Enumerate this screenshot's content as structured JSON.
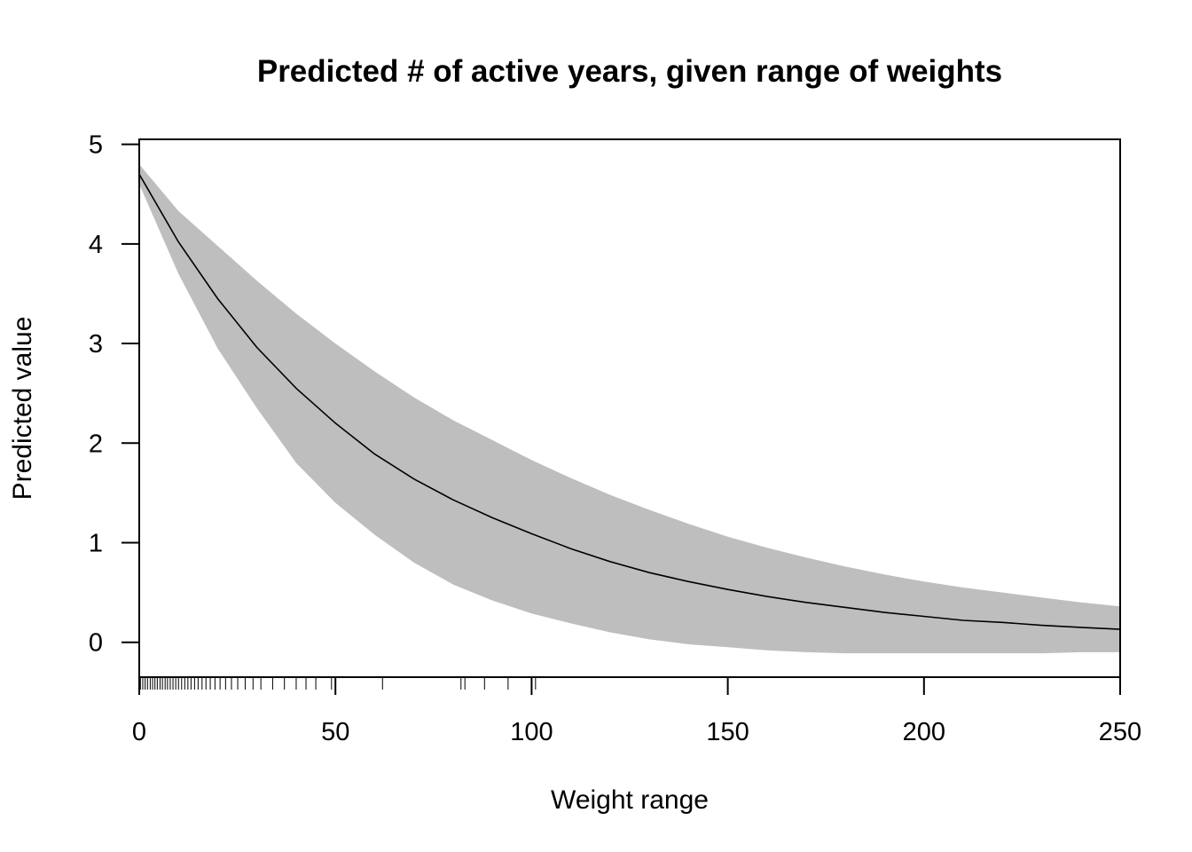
{
  "chart_data": {
    "type": "line",
    "title": "Predicted # of active years, given range of weights",
    "xlabel": "Weight range",
    "ylabel": "Predicted value",
    "xlim": [
      0,
      250
    ],
    "ylim": [
      -0.35,
      5.05
    ],
    "x_ticks": [
      0,
      50,
      100,
      150,
      200,
      250
    ],
    "y_ticks": [
      0,
      1,
      2,
      3,
      4,
      5
    ],
    "grid": false,
    "legend": "none",
    "colors": {
      "line": "#000000",
      "band": "#bebebe",
      "axis": "#000000"
    },
    "series": [
      {
        "x": [
          0,
          10,
          20,
          30,
          40,
          50,
          60,
          70,
          80,
          90,
          100,
          110,
          120,
          130,
          140,
          150,
          160,
          170,
          180,
          190,
          200,
          210,
          220,
          230,
          240,
          250
        ],
        "y": [
          4.7,
          4.02,
          3.45,
          2.96,
          2.55,
          2.2,
          1.89,
          1.64,
          1.43,
          1.25,
          1.09,
          0.94,
          0.81,
          0.7,
          0.61,
          0.53,
          0.46,
          0.4,
          0.35,
          0.3,
          0.26,
          0.22,
          0.2,
          0.17,
          0.15,
          0.13
        ],
        "lower": [
          4.6,
          3.7,
          2.95,
          2.35,
          1.8,
          1.4,
          1.08,
          0.8,
          0.58,
          0.42,
          0.29,
          0.19,
          0.1,
          0.03,
          -0.02,
          -0.05,
          -0.08,
          -0.1,
          -0.11,
          -0.11,
          -0.11,
          -0.11,
          -0.11,
          -0.11,
          -0.1,
          -0.1
        ],
        "upper": [
          4.8,
          4.33,
          3.98,
          3.63,
          3.3,
          3.0,
          2.72,
          2.46,
          2.23,
          2.03,
          1.83,
          1.65,
          1.48,
          1.33,
          1.19,
          1.06,
          0.95,
          0.85,
          0.76,
          0.68,
          0.61,
          0.55,
          0.5,
          0.45,
          0.4,
          0.36
        ]
      }
    ],
    "rug": [
      0.3,
      0.9,
      1.5,
      2.1,
      2.8,
      3.4,
      4.0,
      4.6,
      5.3,
      5.9,
      6.6,
      7.2,
      7.9,
      8.6,
      9.3,
      10.0,
      10.8,
      11.6,
      12.4,
      13.2,
      14.1,
      15.0,
      16.0,
      17.0,
      18.1,
      19.3,
      20.6,
      22.0,
      23.5,
      25.1,
      27.0,
      29.0,
      31.0,
      34.0,
      37.0,
      40.0,
      42.5,
      45.0,
      49.0,
      50.0,
      62.0,
      82.0,
      83.0,
      88.0,
      94.0,
      100.0,
      101.0
    ]
  }
}
